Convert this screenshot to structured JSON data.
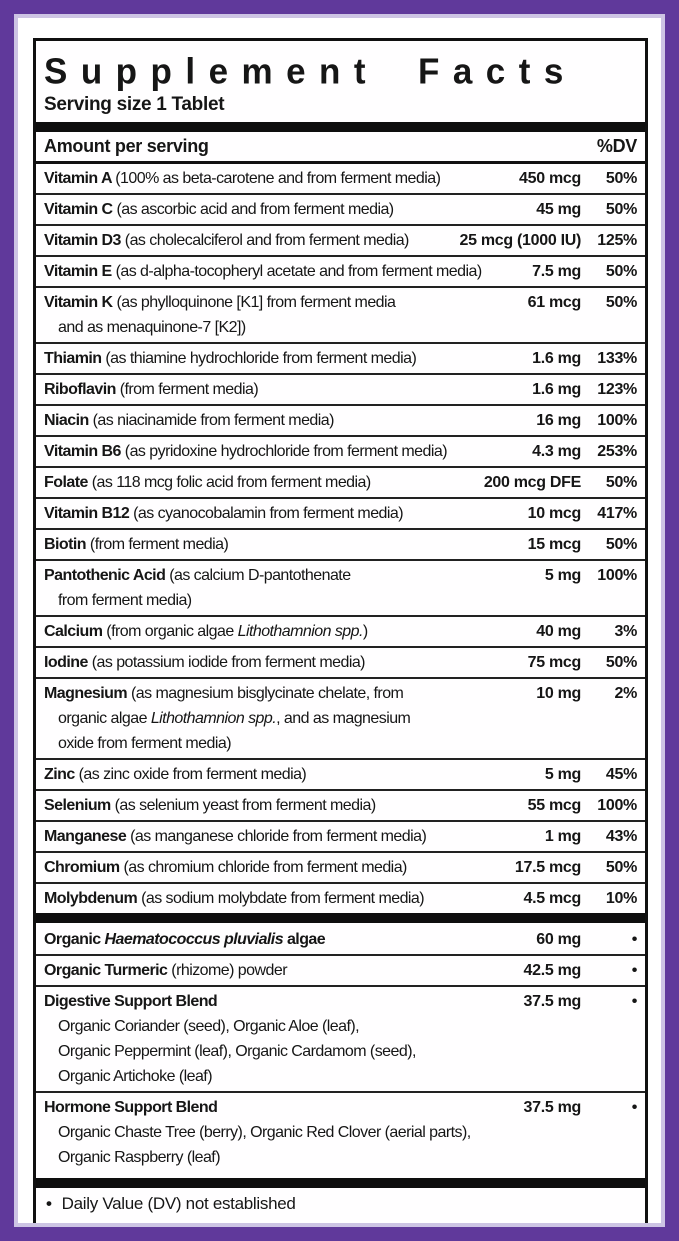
{
  "colors": {
    "frame_purple": "#60399b",
    "frame_inner_light": "#cdc4e4",
    "rule_black": "#0e0e0e"
  },
  "title": "Supplement Facts",
  "serving_size": "Serving size 1 Tablet",
  "header": {
    "amount_label": "Amount per serving",
    "dv_label": "%DV"
  },
  "nutrients": [
    {
      "segments": [
        {
          "t": "Vitamin A ",
          "b": true
        },
        {
          "t": "(100% as beta-carotene and from ferment media)"
        }
      ],
      "amount": "450 mcg",
      "dv": "50%"
    },
    {
      "segments": [
        {
          "t": "Vitamin C ",
          "b": true
        },
        {
          "t": "(as ascorbic acid and from ferment media)"
        }
      ],
      "amount": "45 mg",
      "dv": "50%"
    },
    {
      "segments": [
        {
          "t": "Vitamin D3 ",
          "b": true
        },
        {
          "t": "(as cholecalciferol and from ferment media)"
        }
      ],
      "amount": "25 mcg (1000 IU)",
      "dv": "125%"
    },
    {
      "segments": [
        {
          "t": "Vitamin E ",
          "b": true
        },
        {
          "t": "(as d-alpha-tocopheryl acetate and from ferment media)"
        }
      ],
      "amount": "7.5 mg",
      "dv": "50%"
    },
    {
      "segments": [
        {
          "t": "Vitamin K ",
          "b": true
        },
        {
          "t": "(as phylloquinone [K1] from ferment media"
        }
      ],
      "sublines": [
        [
          {
            "t": "and as menaquinone-7 [K2])"
          }
        ]
      ],
      "amount": "61 mcg",
      "dv": "50%"
    },
    {
      "segments": [
        {
          "t": "Thiamin ",
          "b": true
        },
        {
          "t": "(as thiamine hydrochloride from ferment media)"
        }
      ],
      "amount": "1.6 mg",
      "dv": "133%"
    },
    {
      "segments": [
        {
          "t": "Riboflavin ",
          "b": true
        },
        {
          "t": "(from ferment media)"
        }
      ],
      "amount": "1.6 mg",
      "dv": "123%"
    },
    {
      "segments": [
        {
          "t": "Niacin ",
          "b": true
        },
        {
          "t": "(as niacinamide from ferment media)"
        }
      ],
      "amount": "16 mg",
      "dv": "100%"
    },
    {
      "segments": [
        {
          "t": "Vitamin B6 ",
          "b": true
        },
        {
          "t": "(as pyridoxine hydrochloride from ferment media)"
        }
      ],
      "amount": "4.3 mg",
      "dv": "253%"
    },
    {
      "segments": [
        {
          "t": "Folate ",
          "b": true
        },
        {
          "t": "(as 118 mcg folic acid from ferment media)"
        }
      ],
      "amount": "200 mcg DFE",
      "dv": "50%"
    },
    {
      "segments": [
        {
          "t": "Vitamin B12 ",
          "b": true
        },
        {
          "t": "(as cyanocobalamin from ferment media)"
        }
      ],
      "amount": "10 mcg",
      "dv": "417%"
    },
    {
      "segments": [
        {
          "t": "Biotin ",
          "b": true
        },
        {
          "t": "(from ferment media)"
        }
      ],
      "amount": "15 mcg",
      "dv": "50%"
    },
    {
      "segments": [
        {
          "t": "Pantothenic Acid ",
          "b": true
        },
        {
          "t": "(as calcium D-pantothenate"
        }
      ],
      "sublines": [
        [
          {
            "t": "from ferment media)"
          }
        ]
      ],
      "amount": "5 mg",
      "dv": "100%"
    },
    {
      "segments": [
        {
          "t": "Calcium ",
          "b": true
        },
        {
          "t": "(from organic algae "
        },
        {
          "t": "Lithothamnion spp.",
          "i": true
        },
        {
          "t": ")"
        }
      ],
      "amount": "40 mg",
      "dv": "3%"
    },
    {
      "segments": [
        {
          "t": "Iodine ",
          "b": true
        },
        {
          "t": "(as potassium iodide from ferment media)"
        }
      ],
      "amount": "75 mcg",
      "dv": "50%"
    },
    {
      "segments": [
        {
          "t": "Magnesium ",
          "b": true
        },
        {
          "t": "(as magnesium bisglycinate chelate, from"
        }
      ],
      "sublines": [
        [
          {
            "t": "organic algae "
          },
          {
            "t": "Lithothamnion spp.",
            "i": true
          },
          {
            "t": ", and as magnesium"
          }
        ],
        [
          {
            "t": "oxide from ferment media)"
          }
        ]
      ],
      "amount": "10 mg",
      "dv": "2%"
    },
    {
      "segments": [
        {
          "t": "Zinc ",
          "b": true
        },
        {
          "t": "(as zinc oxide from ferment media)"
        }
      ],
      "amount": "5 mg",
      "dv": "45%"
    },
    {
      "segments": [
        {
          "t": "Selenium ",
          "b": true
        },
        {
          "t": "(as selenium yeast from ferment media)"
        }
      ],
      "amount": "55 mcg",
      "dv": "100%"
    },
    {
      "segments": [
        {
          "t": "Manganese ",
          "b": true
        },
        {
          "t": "(as manganese chloride from ferment media)"
        }
      ],
      "amount": "1 mg",
      "dv": "43%"
    },
    {
      "segments": [
        {
          "t": "Chromium ",
          "b": true
        },
        {
          "t": "(as chromium chloride from ferment media)"
        }
      ],
      "amount": "17.5 mcg",
      "dv": "50%"
    },
    {
      "segments": [
        {
          "t": "Molybdenum ",
          "b": true
        },
        {
          "t": "(as sodium molybdate from ferment media)"
        }
      ],
      "amount": "4.5 mcg",
      "dv": "10%"
    }
  ],
  "botanicals": [
    {
      "segments": [
        {
          "t": "Organic ",
          "b": true
        },
        {
          "t": "Haematococcus pluvialis",
          "b": true,
          "i": true
        },
        {
          "t": " algae",
          "b": true
        }
      ],
      "amount": "60 mg",
      "dv": "•"
    },
    {
      "segments": [
        {
          "t": "Organic Turmeric ",
          "b": true
        },
        {
          "t": "(rhizome) powder"
        }
      ],
      "amount": "42.5 mg",
      "dv": "•"
    },
    {
      "segments": [
        {
          "t": "Digestive Support Blend",
          "b": true
        }
      ],
      "sublines": [
        [
          {
            "t": "Organic Coriander (seed), Organic Aloe (leaf),"
          }
        ],
        [
          {
            "t": "Organic Peppermint (leaf), Organic Cardamom (seed),"
          }
        ],
        [
          {
            "t": "Organic Artichoke (leaf)"
          }
        ]
      ],
      "amount": "37.5 mg",
      "dv": "•"
    },
    {
      "segments": [
        {
          "t": "Hormone Support Blend",
          "b": true
        }
      ],
      "sublines": [
        [
          {
            "t": "Organic Chaste Tree (berry), Organic Red Clover (aerial parts),"
          }
        ],
        [
          {
            "t": "Organic Raspberry (leaf)"
          }
        ]
      ],
      "amount": "37.5 mg",
      "dv": "•"
    }
  ],
  "footnote": {
    "bullet": "•",
    "text": "Daily Value (DV) not established"
  }
}
